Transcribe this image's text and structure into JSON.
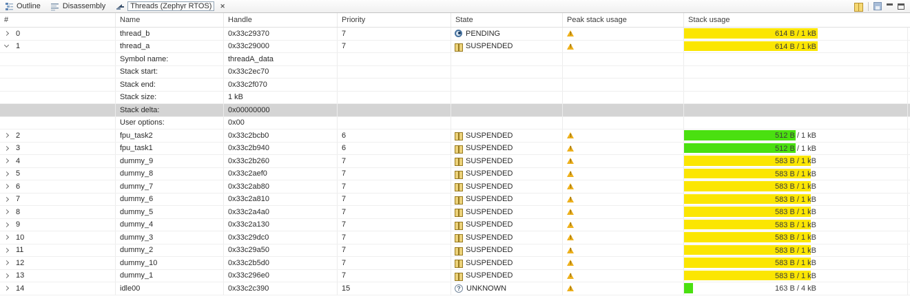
{
  "tabbar": {
    "tabs": [
      {
        "label": "Outline",
        "icon": "outline-icon",
        "active": false
      },
      {
        "label": "Disassembly",
        "icon": "disassembly-icon",
        "active": false
      },
      {
        "label": "Threads (Zephyr RTOS)",
        "icon": "threads-icon",
        "active": true,
        "close_glyph": "✕"
      }
    ],
    "toolbar_icons": [
      "double-column-icon",
      "save-icon",
      "minimize-icon",
      "restore-icon"
    ]
  },
  "colors": {
    "bar_yellow": "#fbe602",
    "bar_green": "#4ae010",
    "selection": "#d4d4d4",
    "warning": "#edb01c"
  },
  "table": {
    "columns": [
      "#",
      "Name",
      "Handle",
      "Priority",
      "State",
      "Peak stack usage",
      "Stack usage"
    ],
    "rows": [
      {
        "type": "thread",
        "num": "0",
        "expanded": false,
        "name": "thread_b",
        "handle": "0x33c29370",
        "priority": "7",
        "state": "PENDING",
        "state_icon": "pending",
        "peak": true,
        "usage": {
          "label": "614 B / 1 kB",
          "fraction": 0.6,
          "color": "yellow"
        }
      },
      {
        "type": "thread",
        "num": "1",
        "expanded": true,
        "name": "thread_a",
        "handle": "0x33c29000",
        "priority": "7",
        "state": "SUSPENDED",
        "state_icon": "suspended",
        "peak": true,
        "usage": {
          "label": "614 B / 1 kB",
          "fraction": 0.6,
          "color": "yellow"
        }
      },
      {
        "type": "detail",
        "label": "Symbol name:",
        "value": "threadA_data",
        "selected": false
      },
      {
        "type": "detail",
        "label": "Stack start:",
        "value": "0x33c2ec70",
        "selected": false
      },
      {
        "type": "detail",
        "label": "Stack end:",
        "value": "0x33c2f070",
        "selected": false
      },
      {
        "type": "detail",
        "label": "Stack size:",
        "value": "1 kB",
        "selected": false
      },
      {
        "type": "detail",
        "label": "Stack delta:",
        "value": "0x00000000",
        "selected": true
      },
      {
        "type": "detail",
        "label": "User options:",
        "value": "0x00",
        "selected": false
      },
      {
        "type": "thread",
        "num": "2",
        "expanded": false,
        "name": "fpu_task2",
        "handle": "0x33c2bcb0",
        "priority": "6",
        "state": "SUSPENDED",
        "state_icon": "suspended",
        "peak": true,
        "usage": {
          "label": "512 B / 1 kB",
          "fraction": 0.5,
          "color": "green"
        }
      },
      {
        "type": "thread",
        "num": "3",
        "expanded": false,
        "name": "fpu_task1",
        "handle": "0x33c2b940",
        "priority": "6",
        "state": "SUSPENDED",
        "state_icon": "suspended",
        "peak": true,
        "usage": {
          "label": "512 B / 1 kB",
          "fraction": 0.5,
          "color": "green"
        }
      },
      {
        "type": "thread",
        "num": "4",
        "expanded": false,
        "name": "dummy_9",
        "handle": "0x33c2b260",
        "priority": "7",
        "state": "SUSPENDED",
        "state_icon": "suspended",
        "peak": true,
        "usage": {
          "label": "583 B / 1 kB",
          "fraction": 0.569,
          "color": "yellow"
        }
      },
      {
        "type": "thread",
        "num": "5",
        "expanded": false,
        "name": "dummy_8",
        "handle": "0x33c2aef0",
        "priority": "7",
        "state": "SUSPENDED",
        "state_icon": "suspended",
        "peak": true,
        "usage": {
          "label": "583 B / 1 kB",
          "fraction": 0.569,
          "color": "yellow"
        }
      },
      {
        "type": "thread",
        "num": "6",
        "expanded": false,
        "name": "dummy_7",
        "handle": "0x33c2ab80",
        "priority": "7",
        "state": "SUSPENDED",
        "state_icon": "suspended",
        "peak": true,
        "usage": {
          "label": "583 B / 1 kB",
          "fraction": 0.569,
          "color": "yellow"
        }
      },
      {
        "type": "thread",
        "num": "7",
        "expanded": false,
        "name": "dummy_6",
        "handle": "0x33c2a810",
        "priority": "7",
        "state": "SUSPENDED",
        "state_icon": "suspended",
        "peak": true,
        "usage": {
          "label": "583 B / 1 kB",
          "fraction": 0.569,
          "color": "yellow"
        }
      },
      {
        "type": "thread",
        "num": "8",
        "expanded": false,
        "name": "dummy_5",
        "handle": "0x33c2a4a0",
        "priority": "7",
        "state": "SUSPENDED",
        "state_icon": "suspended",
        "peak": true,
        "usage": {
          "label": "583 B / 1 kB",
          "fraction": 0.569,
          "color": "yellow"
        }
      },
      {
        "type": "thread",
        "num": "9",
        "expanded": false,
        "name": "dummy_4",
        "handle": "0x33c2a130",
        "priority": "7",
        "state": "SUSPENDED",
        "state_icon": "suspended",
        "peak": true,
        "usage": {
          "label": "583 B / 1 kB",
          "fraction": 0.569,
          "color": "yellow"
        }
      },
      {
        "type": "thread",
        "num": "10",
        "expanded": false,
        "name": "dummy_3",
        "handle": "0x33c29dc0",
        "priority": "7",
        "state": "SUSPENDED",
        "state_icon": "suspended",
        "peak": true,
        "usage": {
          "label": "583 B / 1 kB",
          "fraction": 0.569,
          "color": "yellow"
        }
      },
      {
        "type": "thread",
        "num": "11",
        "expanded": false,
        "name": "dummy_2",
        "handle": "0x33c29a50",
        "priority": "7",
        "state": "SUSPENDED",
        "state_icon": "suspended",
        "peak": true,
        "usage": {
          "label": "583 B / 1 kB",
          "fraction": 0.569,
          "color": "yellow"
        }
      },
      {
        "type": "thread",
        "num": "12",
        "expanded": false,
        "name": "dummy_10",
        "handle": "0x33c2b5d0",
        "priority": "7",
        "state": "SUSPENDED",
        "state_icon": "suspended",
        "peak": true,
        "usage": {
          "label": "583 B / 1 kB",
          "fraction": 0.569,
          "color": "yellow"
        }
      },
      {
        "type": "thread",
        "num": "13",
        "expanded": false,
        "name": "dummy_1",
        "handle": "0x33c296e0",
        "priority": "7",
        "state": "SUSPENDED",
        "state_icon": "suspended",
        "peak": true,
        "usage": {
          "label": "583 B / 1 kB",
          "fraction": 0.569,
          "color": "yellow"
        }
      },
      {
        "type": "thread",
        "num": "14",
        "expanded": false,
        "name": "idle00",
        "handle": "0x33c2c390",
        "priority": "15",
        "state": "UNKNOWN",
        "state_icon": "unknown",
        "peak": true,
        "usage": {
          "label": "163 B / 4 kB",
          "fraction": 0.04,
          "color": "green"
        }
      }
    ]
  }
}
